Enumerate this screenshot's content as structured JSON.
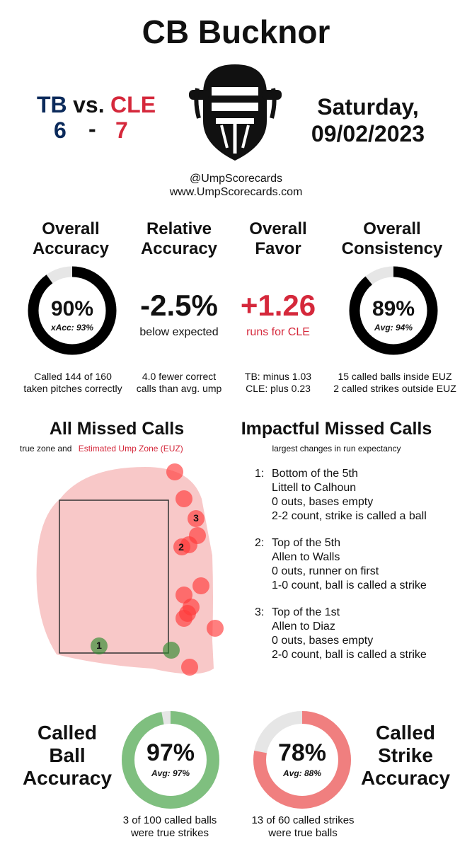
{
  "header": {
    "umpire_name": "CB Bucknor",
    "away_team": "TB",
    "vs_label": "vs.",
    "home_team": "CLE",
    "away_score": "6",
    "score_sep": "-",
    "home_score": "7",
    "date_line1": "Saturday,",
    "date_line2": "09/02/2023",
    "handle": "@UmpScorecards",
    "website": "www.UmpScorecards.com",
    "icon": "umpire-mask-icon"
  },
  "overall": {
    "accuracy": {
      "title1": "Overall",
      "title2": "Accuracy",
      "value": "90%",
      "xacc": "xAcc: 93%",
      "fraction": 0.9,
      "note1": "Called 144 of 160",
      "note2": "taken pitches correctly"
    },
    "relative": {
      "title1": "Relative",
      "title2": "Accuracy",
      "value": "-2.5%",
      "sub": "below expected",
      "note1": "4.0 fewer correct",
      "note2": "calls than avg. ump"
    },
    "favor": {
      "title1": "Overall",
      "title2": "Favor",
      "value": "+1.26",
      "sub": "runs for CLE",
      "note1": "TB: minus 1.03",
      "note2": "CLE: plus 0.23"
    },
    "consistency": {
      "title1": "Overall",
      "title2": "Consistency",
      "value": "89%",
      "avg": "Avg: 94%",
      "fraction": 0.89,
      "note1": "15 called balls inside EUZ",
      "note2": "2 called strikes outside EUZ"
    }
  },
  "missed": {
    "title": "All Missed Calls",
    "legend_true": "true zone and",
    "legend_euz": "Estimated Ump Zone (EUZ)",
    "labels": {
      "l1": "1",
      "l2": "2",
      "l3": "3"
    }
  },
  "impactful": {
    "title": "Impactful Missed Calls",
    "subtitle": "largest changes in run expectancy",
    "calls": [
      {
        "num": "1:",
        "inning": "Bottom of the 5th",
        "matchup": "Littell to Calhoun",
        "situation": "0 outs, bases empty",
        "result": "2-2 count, strike is called a ball"
      },
      {
        "num": "2:",
        "inning": "Top of the 5th",
        "matchup": "Allen to Walls",
        "situation": "0 outs, runner on first",
        "result": "1-0 count, ball is called a strike"
      },
      {
        "num": "3:",
        "inning": "Top of the 1st",
        "matchup": "Allen to Diaz",
        "situation": "0 outs, bases empty",
        "result": "2-0 count, ball is called a strike"
      }
    ]
  },
  "called_ball": {
    "title1": "Called",
    "title2": "Ball",
    "title3": "Accuracy",
    "value": "97%",
    "avg": "Avg: 97%",
    "fraction": 0.97,
    "note1": "3 of 100 called balls",
    "note2": "were true strikes",
    "color": "#7fbf7f"
  },
  "called_strike": {
    "title1": "Called",
    "title2": "Strike",
    "title3": "Accuracy",
    "value": "78%",
    "avg": "Avg: 88%",
    "fraction": 0.78,
    "note1": "13 of 60 called strikes",
    "note2": "were true balls",
    "color": "#f07f7f"
  },
  "colors": {
    "tb": "#0b2a5b",
    "cle": "#d5283b",
    "ring_dark": "#000000",
    "ring_track": "#dddddd",
    "missed_red": "#ff3b3b",
    "missed_green": "#2e8b2e",
    "euz_fill": "#f8c8c8"
  }
}
